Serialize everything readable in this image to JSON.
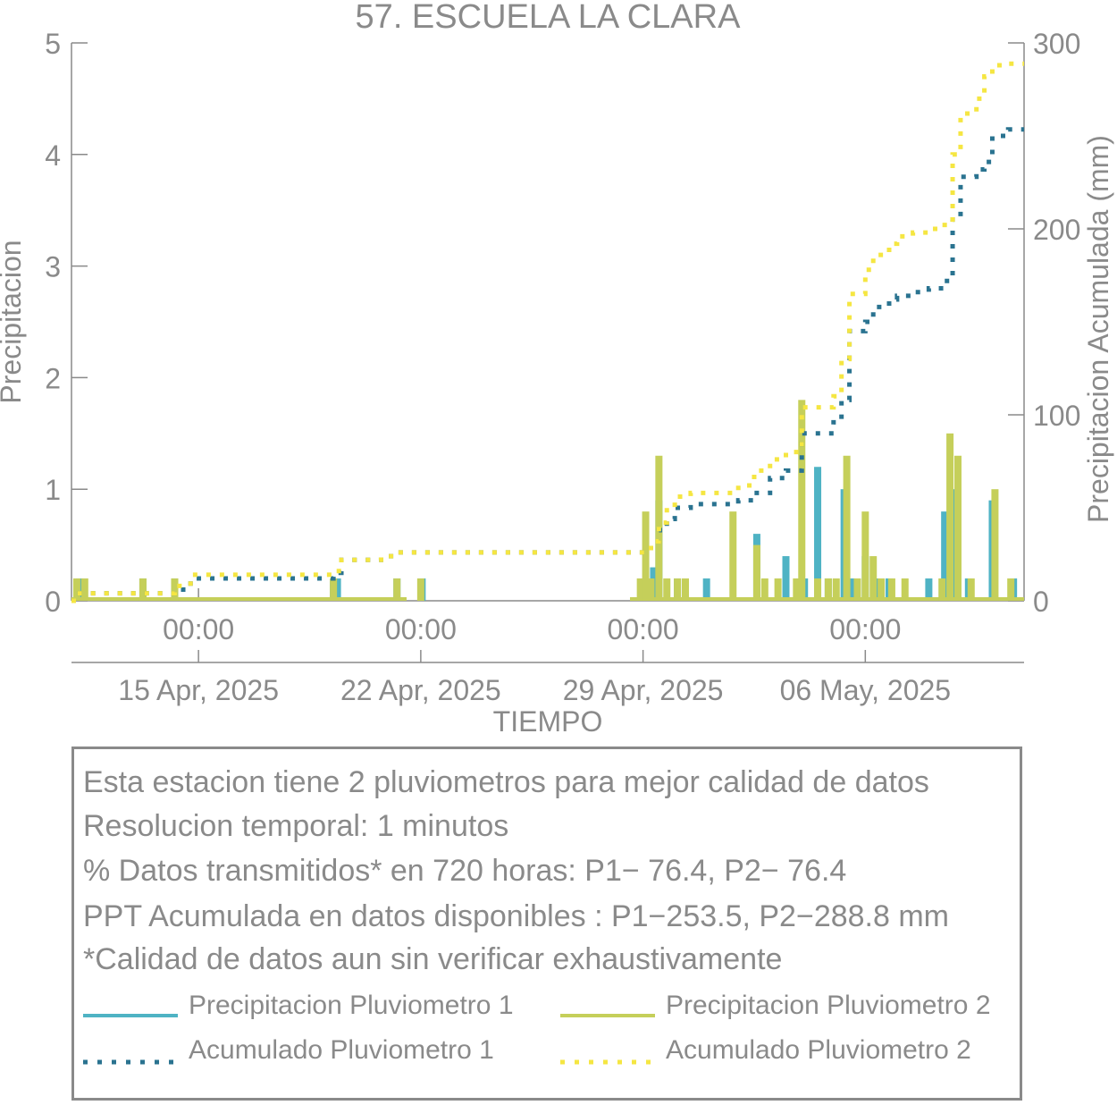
{
  "chart_data": {
    "type": "bar",
    "title": "57. ESCUELA LA CLARA",
    "xlabel": "TIEMPO",
    "ylabel_left": "Precipitacion",
    "ylabel_right": "Precipitacion Acumulada (mm)",
    "ylim_left": [
      0,
      5
    ],
    "yticks_left": [
      "0",
      "1",
      "2",
      "3",
      "4",
      "5"
    ],
    "ylim_right": [
      0,
      300
    ],
    "yticks_right": [
      "0",
      "100",
      "200",
      "300"
    ],
    "xlim_days": [
      "2025-04-11",
      "2025-05-11"
    ],
    "xticks": [
      {
        "day": "2025-04-15",
        "time": "00:00",
        "date": "15 Apr, 2025"
      },
      {
        "day": "2025-04-22",
        "time": "00:00",
        "date": "22 Apr, 2025"
      },
      {
        "day": "2025-04-29",
        "time": "00:00",
        "date": "29 Apr, 2025"
      },
      {
        "day": "2025-05-06",
        "time": "00:00",
        "date": "06 May, 2025"
      }
    ],
    "grid": false,
    "colors": {
      "p1": "#4fb3c4",
      "p2": "#c5cf5a",
      "acc1": "#2a7390",
      "acc2": "#f5e642",
      "axis": "#8a8a8a"
    },
    "series": [
      {
        "name": "Precipitacion Pluviometro 1",
        "kind": "bar",
        "points": [
          [
            "2025-04-11T06:00",
            0.2
          ],
          [
            "2025-04-13T06:00",
            0.2
          ],
          [
            "2025-04-14T06:00",
            0.2
          ],
          [
            "2025-04-19T06:00",
            0.2
          ],
          [
            "2025-04-19T09:00",
            0.2
          ],
          [
            "2025-04-21T06:00",
            0.2
          ],
          [
            "2025-04-22T01:00",
            0.2
          ],
          [
            "2025-04-29T02:00",
            0.2
          ],
          [
            "2025-04-29T08:00",
            0.3
          ],
          [
            "2025-04-29T12:00",
            0.9
          ],
          [
            "2025-04-30T02:00",
            0.2
          ],
          [
            "2025-05-01T00:00",
            0.2
          ],
          [
            "2025-05-02T14:00",
            0.6
          ],
          [
            "2025-05-03T12:00",
            0.4
          ],
          [
            "2025-05-03T22:00",
            0.2
          ],
          [
            "2025-05-04T02:00",
            0.2
          ],
          [
            "2025-05-04T12:00",
            1.2
          ],
          [
            "2025-05-04T20:00",
            0.2
          ],
          [
            "2025-05-05T08:00",
            1.0
          ],
          [
            "2025-05-05T14:00",
            0.2
          ],
          [
            "2025-05-06T00:00",
            0.4
          ],
          [
            "2025-05-06T08:00",
            0.2
          ],
          [
            "2025-05-06T18:00",
            0.2
          ],
          [
            "2025-05-08T00:00",
            0.2
          ],
          [
            "2025-05-08T12:00",
            0.8
          ],
          [
            "2025-05-08T18:00",
            1.0
          ],
          [
            "2025-05-09T06:00",
            0.2
          ],
          [
            "2025-05-10T00:00",
            0.9
          ],
          [
            "2025-05-10T16:00",
            0.2
          ]
        ]
      },
      {
        "name": "Precipitacion Pluviometro 2",
        "kind": "bar",
        "points": [
          [
            "2025-04-11T04:00",
            0.2
          ],
          [
            "2025-04-11T10:00",
            0.2
          ],
          [
            "2025-04-13T06:00",
            0.2
          ],
          [
            "2025-04-14T06:00",
            0.2
          ],
          [
            "2025-04-19T06:00",
            0.2
          ],
          [
            "2025-04-21T06:00",
            0.2
          ],
          [
            "2025-04-22T00:00",
            0.2
          ],
          [
            "2025-04-28T22:00",
            0.2
          ],
          [
            "2025-04-29T02:00",
            0.8
          ],
          [
            "2025-04-29T06:00",
            0.2
          ],
          [
            "2025-04-29T12:00",
            1.3
          ],
          [
            "2025-04-29T18:00",
            0.2
          ],
          [
            "2025-04-30T02:00",
            0.2
          ],
          [
            "2025-04-30T08:00",
            0.2
          ],
          [
            "2025-05-01T20:00",
            0.8
          ],
          [
            "2025-05-02T14:00",
            0.5
          ],
          [
            "2025-05-02T20:00",
            0.2
          ],
          [
            "2025-05-03T06:00",
            0.2
          ],
          [
            "2025-05-03T20:00",
            0.2
          ],
          [
            "2025-05-04T00:00",
            1.8
          ],
          [
            "2025-05-04T12:00",
            0.2
          ],
          [
            "2025-05-04T20:00",
            0.2
          ],
          [
            "2025-05-05T02:00",
            0.2
          ],
          [
            "2025-05-05T10:00",
            1.3
          ],
          [
            "2025-05-05T18:00",
            0.2
          ],
          [
            "2025-05-06T00:00",
            0.8
          ],
          [
            "2025-05-06T06:00",
            0.4
          ],
          [
            "2025-05-06T12:00",
            0.2
          ],
          [
            "2025-05-06T20:00",
            0.2
          ],
          [
            "2025-05-07T06:00",
            0.2
          ],
          [
            "2025-05-08T10:00",
            0.2
          ],
          [
            "2025-05-08T16:00",
            1.5
          ],
          [
            "2025-05-08T22:00",
            1.3
          ],
          [
            "2025-05-09T08:00",
            0.2
          ],
          [
            "2025-05-10T02:00",
            1.0
          ],
          [
            "2025-05-10T14:00",
            0.2
          ]
        ]
      },
      {
        "name": "Acumulado Pluviometro 1",
        "kind": "step",
        "axis": "right",
        "points": [
          [
            "2025-04-11T00:00",
            0
          ],
          [
            "2025-04-11T04:00",
            4
          ],
          [
            "2025-04-14T06:00",
            6
          ],
          [
            "2025-04-14T18:00",
            12
          ],
          [
            "2025-04-19T06:00",
            15
          ],
          [
            "2025-04-19T12:00",
            22
          ],
          [
            "2025-04-20T18:00",
            24
          ],
          [
            "2025-04-21T06:00",
            26
          ],
          [
            "2025-04-28T22:00",
            26
          ],
          [
            "2025-04-29T06:00",
            32
          ],
          [
            "2025-04-29T12:00",
            38
          ],
          [
            "2025-04-29T18:00",
            44
          ],
          [
            "2025-04-30T00:00",
            50
          ],
          [
            "2025-04-30T12:00",
            52
          ],
          [
            "2025-05-02T00:00",
            54
          ],
          [
            "2025-05-02T12:00",
            58
          ],
          [
            "2025-05-03T00:00",
            66
          ],
          [
            "2025-05-03T12:00",
            70
          ],
          [
            "2025-05-04T00:00",
            90
          ],
          [
            "2025-05-05T00:00",
            96
          ],
          [
            "2025-05-05T06:00",
            108
          ],
          [
            "2025-05-05T12:00",
            145
          ],
          [
            "2025-05-06T00:00",
            150
          ],
          [
            "2025-05-06T06:00",
            158
          ],
          [
            "2025-05-06T18:00",
            162
          ],
          [
            "2025-05-07T00:00",
            164
          ],
          [
            "2025-05-07T12:00",
            166
          ],
          [
            "2025-05-08T00:00",
            168
          ],
          [
            "2025-05-08T12:00",
            172
          ],
          [
            "2025-05-08T18:00",
            205
          ],
          [
            "2025-05-09T00:00",
            228
          ],
          [
            "2025-05-09T12:00",
            232
          ],
          [
            "2025-05-09T18:00",
            236
          ],
          [
            "2025-05-10T00:00",
            250
          ],
          [
            "2025-05-10T12:00",
            253.5
          ],
          [
            "2025-05-11T00:00",
            253.5
          ]
        ]
      },
      {
        "name": "Acumulado Pluviometro 2",
        "kind": "step",
        "axis": "right",
        "points": [
          [
            "2025-04-11T00:00",
            0
          ],
          [
            "2025-04-11T04:00",
            4
          ],
          [
            "2025-04-14T06:00",
            8
          ],
          [
            "2025-04-14T18:00",
            14
          ],
          [
            "2025-04-19T06:00",
            16
          ],
          [
            "2025-04-19T12:00",
            22
          ],
          [
            "2025-04-20T18:00",
            24
          ],
          [
            "2025-04-21T06:00",
            26
          ],
          [
            "2025-04-28T22:00",
            26
          ],
          [
            "2025-04-29T06:00",
            32
          ],
          [
            "2025-04-29T12:00",
            42
          ],
          [
            "2025-04-29T18:00",
            50
          ],
          [
            "2025-04-30T00:00",
            56
          ],
          [
            "2025-04-30T12:00",
            58
          ],
          [
            "2025-05-02T00:00",
            62
          ],
          [
            "2025-05-02T12:00",
            70
          ],
          [
            "2025-05-03T00:00",
            76
          ],
          [
            "2025-05-03T12:00",
            80
          ],
          [
            "2025-05-04T00:00",
            104
          ],
          [
            "2025-05-05T00:00",
            110
          ],
          [
            "2025-05-05T06:00",
            130
          ],
          [
            "2025-05-05T12:00",
            165
          ],
          [
            "2025-05-06T00:00",
            178
          ],
          [
            "2025-05-06T06:00",
            186
          ],
          [
            "2025-05-06T18:00",
            192
          ],
          [
            "2025-05-07T00:00",
            196
          ],
          [
            "2025-05-07T12:00",
            198
          ],
          [
            "2025-05-08T00:00",
            200
          ],
          [
            "2025-05-08T12:00",
            205
          ],
          [
            "2025-05-08T18:00",
            240
          ],
          [
            "2025-05-09T00:00",
            262
          ],
          [
            "2025-05-09T12:00",
            270
          ],
          [
            "2025-05-09T18:00",
            282
          ],
          [
            "2025-05-10T00:00",
            288
          ],
          [
            "2025-05-10T12:00",
            288.8
          ],
          [
            "2025-05-11T00:00",
            288.8
          ]
        ]
      }
    ]
  },
  "info": {
    "lines": [
      "Esta estacion tiene 2 pluviometros para mejor calidad de datos",
      "Resolucion temporal: 1 minutos",
      "% Datos transmitidos* en 720 horas: P1− 76.4, P2− 76.4",
      "PPT Acumulada en datos disponibles : P1−253.5, P2−288.8 mm",
      "*Calidad de datos aun sin verificar exhaustivamente"
    ],
    "legend": [
      {
        "label": "Precipitacion Pluviometro 1",
        "style": "solid",
        "color": "#4fb3c4"
      },
      {
        "label": "Precipitacion Pluviometro 2",
        "style": "solid",
        "color": "#c5cf5a"
      },
      {
        "label": "Acumulado Pluviometro 1",
        "style": "dotted",
        "color": "#2a7390"
      },
      {
        "label": "Acumulado Pluviometro 2",
        "style": "dotted",
        "color": "#f5e642"
      }
    ]
  }
}
